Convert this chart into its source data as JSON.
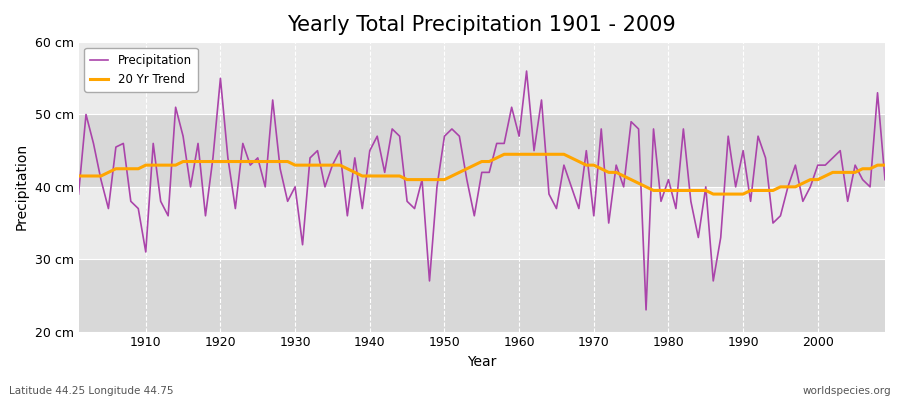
{
  "title": "Yearly Total Precipitation 1901 - 2009",
  "xlabel": "Year",
  "ylabel": "Precipitation",
  "subtitle_left": "Latitude 44.25 Longitude 44.75",
  "subtitle_right": "worldspecies.org",
  "precip_color": "#AA44AA",
  "trend_color": "#FFA500",
  "background_color": "#FFFFFF",
  "plot_bg_light": "#EBEBEB",
  "plot_bg_dark": "#D8D8D8",
  "legend_labels": [
    "Precipitation",
    "20 Yr Trend"
  ],
  "years": [
    1901,
    1902,
    1903,
    1904,
    1905,
    1906,
    1907,
    1908,
    1909,
    1910,
    1911,
    1912,
    1913,
    1914,
    1915,
    1916,
    1917,
    1918,
    1919,
    1920,
    1921,
    1922,
    1923,
    1924,
    1925,
    1926,
    1927,
    1928,
    1929,
    1930,
    1931,
    1932,
    1933,
    1934,
    1935,
    1936,
    1937,
    1938,
    1939,
    1940,
    1941,
    1942,
    1943,
    1944,
    1945,
    1946,
    1947,
    1948,
    1949,
    1950,
    1951,
    1952,
    1953,
    1954,
    1955,
    1956,
    1957,
    1958,
    1959,
    1960,
    1961,
    1962,
    1963,
    1964,
    1965,
    1966,
    1967,
    1968,
    1969,
    1970,
    1971,
    1972,
    1973,
    1974,
    1975,
    1976,
    1977,
    1978,
    1979,
    1980,
    1981,
    1982,
    1983,
    1984,
    1985,
    1986,
    1987,
    1988,
    1989,
    1990,
    1991,
    1992,
    1993,
    1994,
    1995,
    1996,
    1997,
    1998,
    1999,
    2000,
    2001,
    2002,
    2003,
    2004,
    2005,
    2006,
    2007,
    2008,
    2009
  ],
  "precip": [
    39.0,
    50.0,
    46.0,
    41.0,
    37.0,
    45.5,
    46.0,
    38.0,
    37.0,
    31.0,
    46.0,
    38.0,
    36.0,
    51.0,
    47.0,
    40.0,
    46.0,
    36.0,
    44.0,
    55.0,
    44.0,
    37.0,
    46.0,
    43.0,
    44.0,
    40.0,
    52.0,
    42.5,
    38.0,
    40.0,
    32.0,
    44.0,
    45.0,
    40.0,
    43.0,
    45.0,
    36.0,
    44.0,
    37.0,
    45.0,
    47.0,
    42.0,
    48.0,
    47.0,
    38.0,
    37.0,
    41.0,
    27.0,
    40.0,
    47.0,
    48.0,
    47.0,
    41.0,
    36.0,
    42.0,
    42.0,
    46.0,
    46.0,
    51.0,
    47.0,
    56.0,
    45.0,
    52.0,
    39.0,
    37.0,
    43.0,
    40.0,
    37.0,
    45.0,
    36.0,
    48.0,
    35.0,
    43.0,
    40.0,
    49.0,
    48.0,
    23.0,
    48.0,
    38.0,
    41.0,
    37.0,
    48.0,
    38.0,
    33.0,
    40.0,
    27.0,
    33.0,
    47.0,
    40.0,
    45.0,
    38.0,
    47.0,
    44.0,
    35.0,
    36.0,
    40.0,
    43.0,
    38.0,
    40.0,
    43.0,
    43.0,
    44.0,
    45.0,
    38.0,
    43.0,
    41.0,
    40.0,
    53.0,
    41.0
  ],
  "trend": [
    41.5,
    41.5,
    41.5,
    41.5,
    42.0,
    42.5,
    42.5,
    42.5,
    42.5,
    43.0,
    43.0,
    43.0,
    43.0,
    43.0,
    43.5,
    43.5,
    43.5,
    43.5,
    43.5,
    43.5,
    43.5,
    43.5,
    43.5,
    43.5,
    43.5,
    43.5,
    43.5,
    43.5,
    43.5,
    43.0,
    43.0,
    43.0,
    43.0,
    43.0,
    43.0,
    43.0,
    42.5,
    42.0,
    41.5,
    41.5,
    41.5,
    41.5,
    41.5,
    41.5,
    41.0,
    41.0,
    41.0,
    41.0,
    41.0,
    41.0,
    41.5,
    42.0,
    42.5,
    43.0,
    43.5,
    43.5,
    44.0,
    44.5,
    44.5,
    44.5,
    44.5,
    44.5,
    44.5,
    44.5,
    44.5,
    44.5,
    44.0,
    43.5,
    43.0,
    43.0,
    42.5,
    42.0,
    42.0,
    41.5,
    41.0,
    40.5,
    40.0,
    39.5,
    39.5,
    39.5,
    39.5,
    39.5,
    39.5,
    39.5,
    39.5,
    39.0,
    39.0,
    39.0,
    39.0,
    39.0,
    39.5,
    39.5,
    39.5,
    39.5,
    40.0,
    40.0,
    40.0,
    40.5,
    41.0,
    41.0,
    41.5,
    42.0,
    42.0,
    42.0,
    42.0,
    42.5,
    42.5,
    43.0,
    43.0
  ],
  "ylim": [
    20,
    60
  ],
  "yticks": [
    20,
    30,
    40,
    50,
    60
  ],
  "ytick_labels": [
    "20 cm",
    "30 cm",
    "40 cm",
    "50 cm",
    "60 cm"
  ],
  "xticks": [
    1910,
    1920,
    1930,
    1940,
    1950,
    1960,
    1970,
    1980,
    1990,
    2000
  ],
  "title_fontsize": 15,
  "axis_fontsize": 9,
  "label_fontsize": 10
}
